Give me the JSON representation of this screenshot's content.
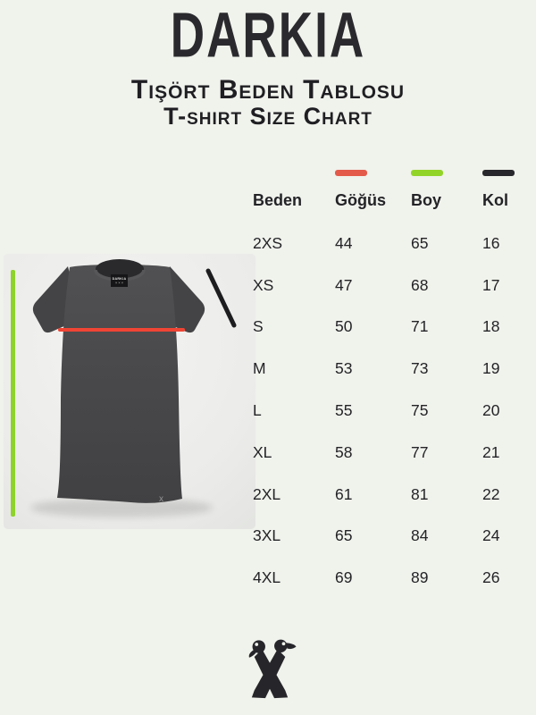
{
  "page": {
    "background": "#f0f2ec"
  },
  "brand": {
    "logo_text": "DARKIA",
    "neck_label_text": "DARKIA",
    "hem_mark": "x"
  },
  "title": {
    "turkish": "Tişört Beden Tablosu",
    "english": "T-shirt Size Chart"
  },
  "table": {
    "columns": [
      {
        "label": "Beden",
        "marker_color": null
      },
      {
        "label": "Göğüs",
        "marker_color": "#e45a4a"
      },
      {
        "label": "Boy",
        "marker_color": "#93d429"
      },
      {
        "label": "Kol",
        "marker_color": "#28282c"
      }
    ]
  },
  "measurement_lines": {
    "chest_color": "#f04434",
    "length_color": "#8ed32c",
    "sleeve_color": "#1d1d1f"
  },
  "chart_data": {
    "type": "table",
    "title": "Tişört Beden Tablosu / T-shirt Size Chart",
    "columns": [
      "Beden",
      "Göğüs",
      "Boy",
      "Kol"
    ],
    "rows": [
      [
        "2XS",
        "44",
        "65",
        "16"
      ],
      [
        "XS",
        "47",
        "68",
        "17"
      ],
      [
        "S",
        "50",
        "71",
        "18"
      ],
      [
        "M",
        "53",
        "73",
        "19"
      ],
      [
        "L",
        "55",
        "75",
        "20"
      ],
      [
        "XL",
        "58",
        "77",
        "21"
      ],
      [
        "2XL",
        "61",
        "81",
        "22"
      ],
      [
        "3XL",
        "65",
        "84",
        "24"
      ],
      [
        "4XL",
        "69",
        "89",
        "26"
      ]
    ]
  }
}
